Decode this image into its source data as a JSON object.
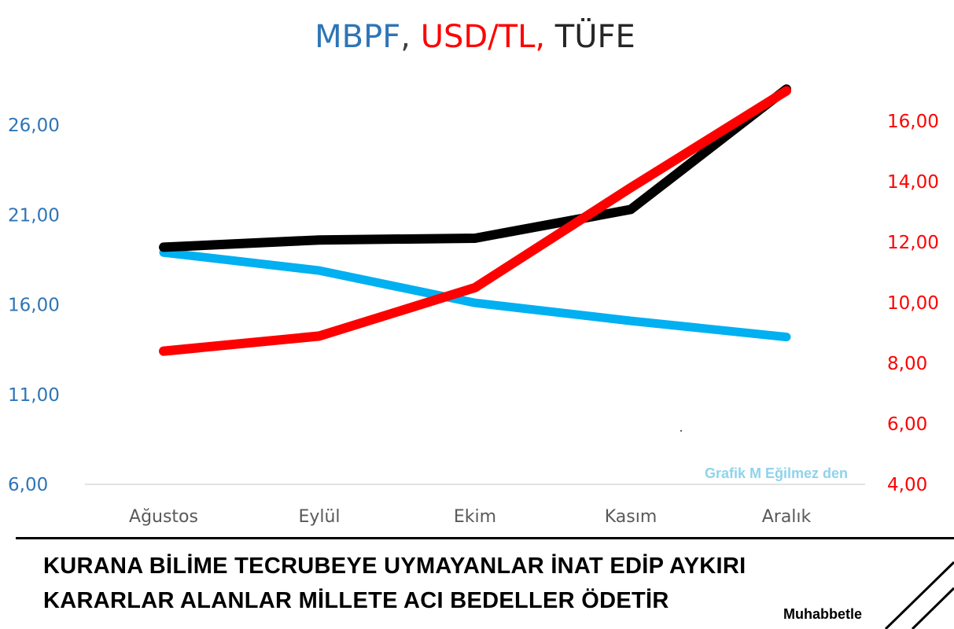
{
  "chart_data": {
    "type": "line",
    "title_parts": [
      {
        "text": "MBPF",
        "color": "#2e75b6"
      },
      {
        "text": ", ",
        "color": "#404040"
      },
      {
        "text": "USD/TL,",
        "color": "#ff0000"
      },
      {
        "text": " TÜFE",
        "color": "#262626"
      }
    ],
    "categories": [
      "Ağustos",
      "Eylül",
      "Ekim",
      "Kasım",
      "Aralık"
    ],
    "left_axis": {
      "min": 6,
      "max": 26,
      "ticks": [
        "26,00",
        "21,00",
        "16,00",
        "11,00",
        "6,00"
      ],
      "tick_values": [
        26,
        21,
        16,
        11,
        6
      ],
      "color": "#2e75b6"
    },
    "right_axis": {
      "min": 4,
      "max": 16,
      "ticks": [
        "16,00",
        "14,00",
        "12,00",
        "10,00",
        "8,00",
        "6,00",
        "4,00"
      ],
      "tick_values": [
        16,
        14,
        12,
        10,
        8,
        6,
        4
      ],
      "color": "#ff0000"
    },
    "series": [
      {
        "axis": "left",
        "color": "#00b0f0",
        "values": [
          18.9,
          17.9,
          16.1,
          15.1,
          14.2
        ]
      },
      {
        "axis": "left",
        "color": "#000000",
        "values": [
          19.2,
          19.6,
          19.7,
          21.3,
          28.0
        ]
      },
      {
        "axis": "right",
        "color": "#ff0000",
        "values": [
          8.4,
          8.9,
          10.5,
          13.8,
          17.0
        ]
      }
    ],
    "annotation": "Grafik M Eğilmez den",
    "grid": false
  },
  "caption": {
    "line1": "KURANA BİLİME TECRUBEYE UYMAYANLAR İNAT EDİP AYKIRI",
    "line2": "KARARLAR ALANLAR MİLLETE ACI BEDELLER ÖDETİR",
    "signature": "Muhabbetle"
  }
}
